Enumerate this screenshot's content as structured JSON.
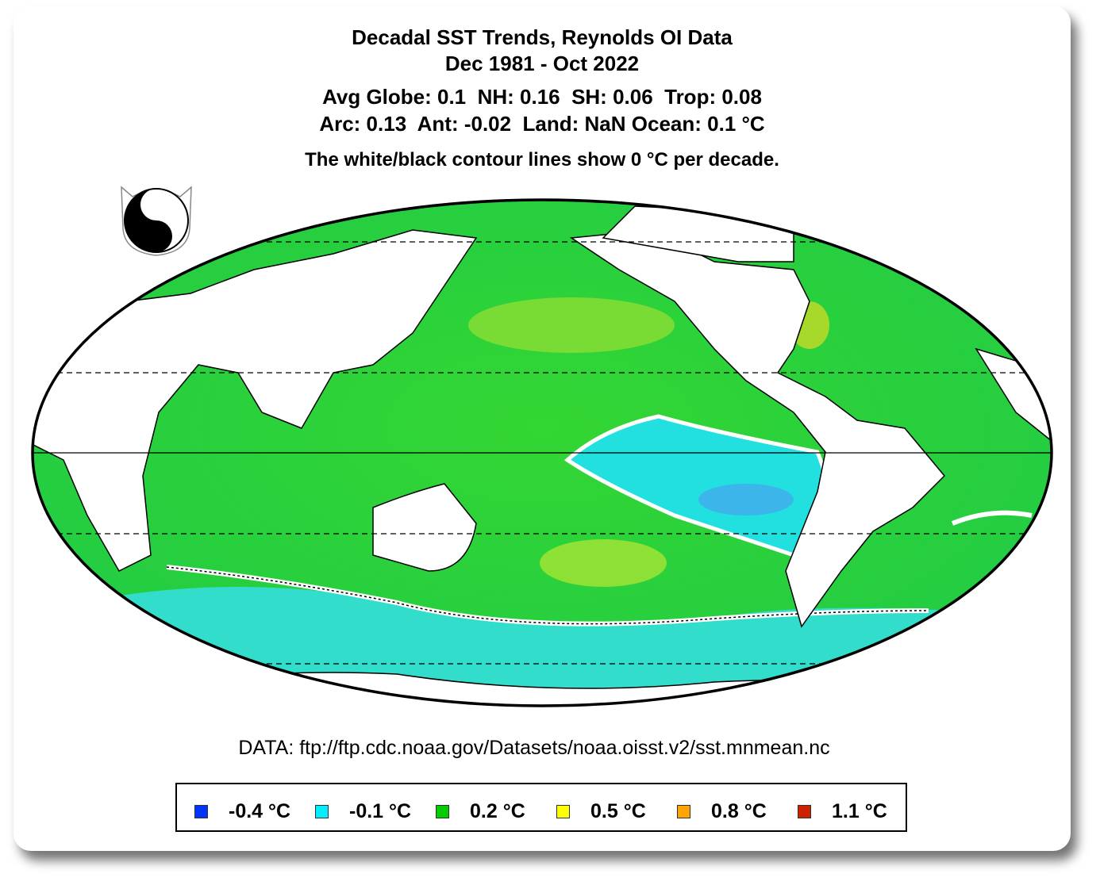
{
  "title": [
    "Decadal SST Trends, Reynolds OI Data",
    "Dec 1981 - Oct 2022"
  ],
  "stats": [
    "Avg Globe: 0.1  NH: 0.16  SH: 0.06  Trop: 0.08",
    "Arc: 0.13  Ant: -0.02  Land: NaN Ocean: 0.1 °C"
  ],
  "note": "The white/black contour lines show 0 °C per decade.",
  "source": "DATA: ftp://ftp.cdc.noaa.gov/Datasets/noaa.oisst.v2/sst.mnmean.nc",
  "logo": "yin-yang-cat-logo",
  "map": {
    "projection": "Mollweide",
    "center": "Pacific",
    "land_color": "#ffffff",
    "zero_contour": "white/black"
  },
  "legend": [
    {
      "label": "-0.4 °C",
      "color": "#0033ff"
    },
    {
      "label": "-0.1 °C",
      "color": "#00eeff"
    },
    {
      "label": "0.2 °C",
      "color": "#00cc00"
    },
    {
      "label": "0.5 °C",
      "color": "#ffff00"
    },
    {
      "label": "0.8 °C",
      "color": "#ffa500"
    },
    {
      "label": "1.1 °C",
      "color": "#cc2200"
    }
  ]
}
